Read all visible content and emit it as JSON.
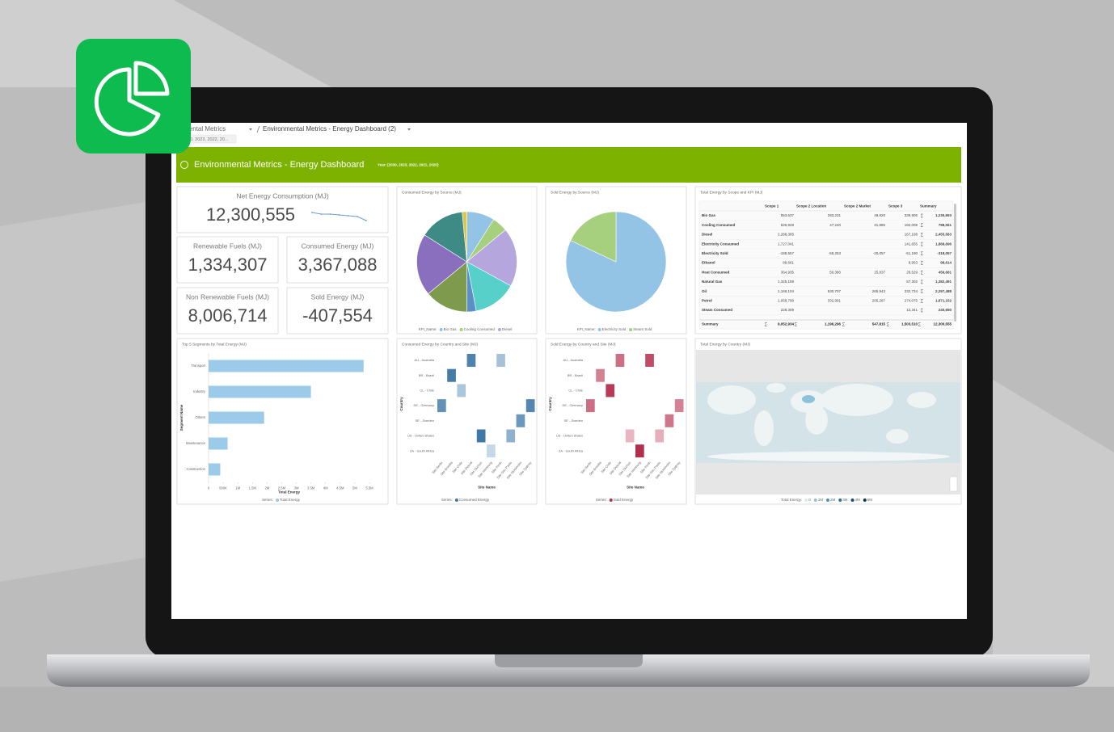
{
  "breadcrumb": {
    "parent": "Environmental Metrics",
    "current": "Environmental Metrics - Energy Dashboard (2)",
    "filter": "20, 2023, 2022, 20..."
  },
  "header": {
    "title": "Environmental Metrics - Energy Dashboard",
    "filter": "Year: [2030, 2023, 2022, 2021, 2020]"
  },
  "kpis": [
    {
      "label": "Net Energy Consumption (MJ)",
      "value": "12,300,555",
      "trend": [
        12.8,
        12.7,
        12.7,
        12.65,
        12.6,
        12.55,
        12.3
      ]
    },
    {
      "label": "Renewable Fuels (MJ)",
      "value": "1,334,307"
    },
    {
      "label": "Consumed Energy (MJ)",
      "value": "3,367,088"
    },
    {
      "label": "Non Renewable Fuels (MJ)",
      "value": "8,006,714"
    },
    {
      "label": "Sold Energy (MJ)",
      "value": "-407,554"
    }
  ],
  "table": {
    "title": "Total Energy by Scope and KPI (MJ)",
    "columns": [
      "Scope 1",
      "Scope 2 Location",
      "Scope 2 Market",
      "Scope 3",
      "Summary"
    ],
    "rows": [
      {
        "label": "Bio Gas",
        "cells": [
          "553,637",
          "293,231",
          "48,920",
          "339,905",
          "1,235,693"
        ]
      },
      {
        "label": "Cooling Consumed",
        "cells": [
          "526,928",
          "47,240",
          "31,885",
          "192,008",
          "798,061"
        ]
      },
      {
        "label": "Diesel",
        "cells": [
          "2,288,385",
          null,
          null,
          "167,198",
          "2,455,583"
        ]
      },
      {
        "label": "Electricity Consumed",
        "cells": [
          "1,727,041",
          null,
          null,
          "141,655",
          "1,868,696"
        ]
      },
      {
        "label": "Electricity Sold",
        "cells": [
          "-188,557",
          "-58,253",
          "-20,057",
          "-51,190",
          "-318,057"
        ]
      },
      {
        "label": "Ethanol",
        "cells": [
          "89,661",
          null,
          null,
          "8,953",
          "98,614"
        ]
      },
      {
        "label": "Heat Consumed",
        "cells": [
          "364,935",
          "50,380",
          "15,837",
          "28,529",
          "459,681"
        ]
      },
      {
        "label": "Natural Gas",
        "cells": [
          "1,325,189",
          null,
          null,
          "57,302",
          "1,382,491"
        ]
      },
      {
        "label": "Oil",
        "cells": [
          "1,168,104",
          "530,707",
          "265,943",
          "332,734",
          "2,297,488"
        ]
      },
      {
        "label": "Petrol",
        "cells": [
          "1,058,799",
          "332,991",
          "205,287",
          "274,075",
          "1,871,152"
        ]
      },
      {
        "label": "Steam Consumed",
        "cells": [
          "228,309",
          null,
          null,
          "12,341",
          "240,650"
        ]
      }
    ],
    "summary": {
      "label": "Summary",
      "cells": [
        "9,052,934",
        "1,196,296",
        "547,815",
        "1,503,510",
        "12,300,555"
      ]
    }
  },
  "chart_data": [
    {
      "type": "pie",
      "title": "Consumed Energy by Source (MJ)",
      "legend_title": "KPI_Name:",
      "categories": [
        "Bio Gas",
        "Cooling Consumed",
        "Diesel",
        null,
        null,
        null,
        null,
        null,
        null
      ],
      "values": [
        9,
        5,
        19,
        14,
        3,
        14,
        20,
        14.5,
        1.5
      ],
      "colors": [
        "#93c4e6",
        "#a6cf7e",
        "#b6a6de",
        "#56d0c8",
        "#5b8fc7",
        "#7e9a4c",
        "#8a6fbf",
        "#3e8b86",
        "#d8c84a"
      ]
    },
    {
      "type": "pie",
      "title": "Sold Energy by Source (MJ)",
      "legend_title": "KPI_Name:",
      "categories": [
        "Electricity Sold",
        "Steam Sold"
      ],
      "values": [
        82,
        18
      ],
      "colors": [
        "#93c4e6",
        "#a6cf7e"
      ]
    },
    {
      "type": "bar",
      "title": "Top 5 Segments by Total Energy (MJ)",
      "x_label": "Total Energy",
      "y_label": "Segment Name",
      "legend_title": "Series:",
      "categories": [
        "Transport",
        "Industry",
        "Others",
        "Maintenance",
        "Construction"
      ],
      "series": [
        {
          "name": "Total Energy",
          "color": "#9ccbea",
          "values": [
            5300000,
            3500000,
            1900000,
            650000,
            400000
          ]
        }
      ],
      "xlim": [
        0,
        5500000
      ],
      "xticks": [
        0,
        {
          "value": 500000,
          "label": "500K"
        },
        {
          "value": 1000000,
          "label": "1M"
        },
        {
          "value": 1500000,
          "label": "1.5M"
        },
        {
          "value": 2000000,
          "label": "2M"
        },
        {
          "value": 2500000,
          "label": "2.5M"
        },
        {
          "value": 3000000,
          "label": "3M"
        },
        {
          "value": 3500000,
          "label": "3.5M"
        },
        {
          "value": 4000000,
          "label": "4M"
        },
        {
          "value": 4500000,
          "label": "4.5M"
        },
        {
          "value": 5000000,
          "label": "5M"
        },
        {
          "value": 5500000,
          "label": "5.5M"
        }
      ]
    },
    {
      "type": "heatmap",
      "title": "Consumed Energy by Country and Site (MJ)",
      "x_label": "Site Name",
      "y_label": "Country",
      "legend_title": "Series:",
      "series_name": "Consumed Energy",
      "color_range": [
        "#e3edf5",
        "#3f78a6"
      ],
      "x": [
        "Site Berlin",
        "Site Brasilia",
        "Site Chile",
        "Site Detroit",
        "Site Durban",
        "Site Hamburg",
        "Site Perth",
        "Site Sao Paulo",
        "Site Stockholm",
        "Site Sydney"
      ],
      "categories": [
        "AU - Australia",
        "BR - Brazil",
        "CL - Chile",
        "DE - Germany",
        "SE - Sweden",
        "US - United States",
        "ZA - South Africa"
      ],
      "points": [
        {
          "x": 3,
          "y": 0,
          "value": 300000
        },
        {
          "x": 6,
          "y": 0,
          "value": 120000
        },
        {
          "x": 1,
          "y": 1,
          "value": 320000
        },
        {
          "x": 2,
          "y": 2,
          "value": 110000
        },
        {
          "x": 0,
          "y": 3,
          "value": 260000
        },
        {
          "x": 9,
          "y": 3,
          "value": 290000
        },
        {
          "x": 8,
          "y": 4,
          "value": 240000
        },
        {
          "x": 4,
          "y": 5,
          "value": 330000
        },
        {
          "x": 7,
          "y": 5,
          "value": 170000
        },
        {
          "x": 5,
          "y": 6,
          "value": 60000
        }
      ]
    },
    {
      "type": "heatmap",
      "title": "Sold Energy by Country and Site (MJ)",
      "x_label": "Site Name",
      "y_label": "Country",
      "legend_title": "Series:",
      "series_name": "Sold Energy",
      "color_range": [
        "#f6d8e0",
        "#b3304d"
      ],
      "x": [
        "Site Berlin",
        "Site Brasilia",
        "Site Chile",
        "Site Detroit",
        "Site Durban",
        "Site Hamburg",
        "Site Perth",
        "Site Sao Paulo",
        "Site Stockholm",
        "Site Sydney"
      ],
      "categories": [
        "AU - Australia",
        "BR - Brazil",
        "CL - Chile",
        "DE - Germany",
        "SE - Sweden",
        "US - United States",
        "ZA - South Africa"
      ],
      "points": [
        {
          "x": 3,
          "y": 0,
          "value": -30000
        },
        {
          "x": 6,
          "y": 0,
          "value": -40000
        },
        {
          "x": 1,
          "y": 1,
          "value": -25000
        },
        {
          "x": 2,
          "y": 2,
          "value": -45000
        },
        {
          "x": 0,
          "y": 3,
          "value": -30000
        },
        {
          "x": 9,
          "y": 3,
          "value": -25000
        },
        {
          "x": 8,
          "y": 4,
          "value": -28000
        },
        {
          "x": 4,
          "y": 5,
          "value": -10000
        },
        {
          "x": 7,
          "y": 5,
          "value": -12000
        },
        {
          "x": 5,
          "y": 6,
          "value": -48000
        }
      ]
    },
    {
      "type": "map",
      "title": "Total Energy by Country (MJ)",
      "legend_title": "Total Energy:",
      "legend_stops": [
        0,
        {
          "value": 1000000,
          "label": "1M"
        },
        {
          "value": 2000000,
          "label": "2M"
        },
        {
          "value": 3000000,
          "label": "3M"
        },
        {
          "value": 4000000,
          "label": "4M"
        },
        {
          "value": 5000000,
          "label": "5M"
        }
      ],
      "colors": [
        "#d4ecf2",
        "#8cc2dc",
        "#4f93bf",
        "#2b6f9c",
        "#17507a",
        "#0b3656"
      ]
    }
  ]
}
